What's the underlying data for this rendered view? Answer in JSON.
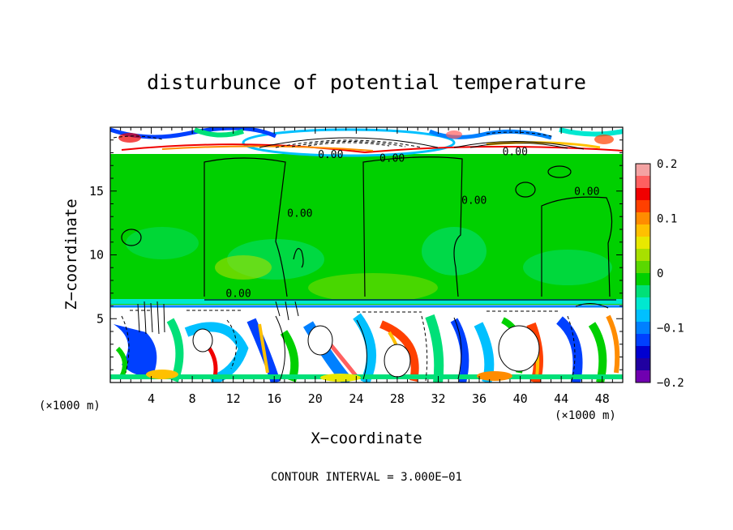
{
  "chart_data": {
    "type": "heatmap",
    "title": "disturbunce of potential temperature",
    "xlabel": "X−coordinate",
    "ylabel": "Z−coordinate",
    "x_unit_left": "(×1000 m)",
    "x_unit_right": "(×1000 m)",
    "footer": "CONTOUR INTERVAL = 3.000E−01",
    "xlim": [
      0,
      50
    ],
    "ylim": [
      0,
      20
    ],
    "x_ticks": [
      4,
      8,
      12,
      16,
      20,
      24,
      28,
      32,
      36,
      40,
      44,
      48
    ],
    "x_tick_labels": [
      "4",
      "8",
      "12",
      "16",
      "20",
      "24",
      "28",
      "32",
      "36",
      "40",
      "44",
      "48"
    ],
    "y_ticks": [
      5,
      10,
      15
    ],
    "y_tick_labels": [
      "5",
      "10",
      "15"
    ],
    "colorbar": {
      "range": [
        -0.2,
        0.2
      ],
      "tick_values": [
        0.2,
        0.1,
        0,
        -0.1,
        -0.2
      ],
      "tick_labels": [
        "0.2",
        "0.1",
        "0",
        "−0.1",
        "−0.2"
      ],
      "colors": [
        "#f4a3a3",
        "#ff6060",
        "#f00000",
        "#ff4000",
        "#ff8c00",
        "#ffc000",
        "#e8e800",
        "#a8e000",
        "#5ad800",
        "#00d000",
        "#00e078",
        "#00e8d0",
        "#00c0ff",
        "#0080ff",
        "#0040ff",
        "#0000d0",
        "#2000a0",
        "#7000b0"
      ]
    },
    "contour_labels": [
      {
        "text": "0.00",
        "x": 21.5,
        "y": 17.6
      },
      {
        "text": "0.00",
        "x": 27.5,
        "y": 17.3
      },
      {
        "text": "0.00",
        "x": 39.5,
        "y": 17.8
      },
      {
        "text": "0.00",
        "x": 18.5,
        "y": 13.0
      },
      {
        "text": "0.00",
        "x": 35.5,
        "y": 14.0
      },
      {
        "text": "0.00",
        "x": 46.5,
        "y": 14.7
      },
      {
        "text": "0.00",
        "x": 12.5,
        "y": 6.7
      }
    ],
    "regions": {
      "upper_band_z": [
        17.7,
        20
      ],
      "interior_z": [
        6.1,
        17.7
      ],
      "boundary_layer_z": [
        0,
        6.1
      ]
    }
  }
}
